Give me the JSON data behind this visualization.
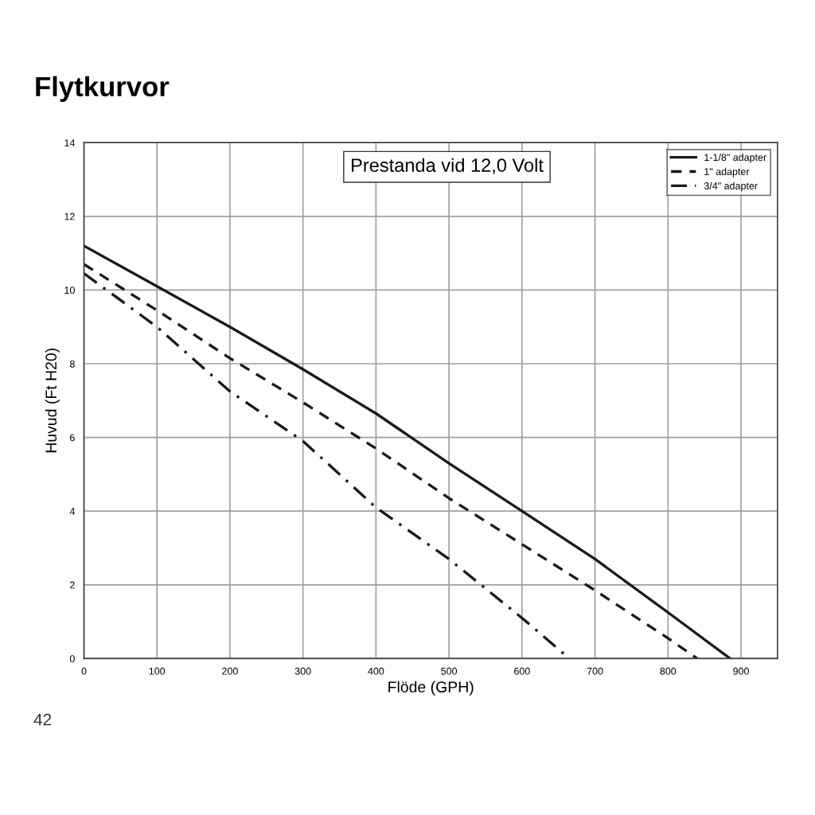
{
  "chart_data": {
    "type": "line",
    "title": "Flytkurvor",
    "xlabel": "Flöde (GPH)",
    "ylabel": "Huvud (Ft H20)",
    "annotations": [
      "Prestanda vid 12,0 Volt",
      "42"
    ],
    "xlim": [
      0,
      950
    ],
    "xticks": [
      0,
      100,
      200,
      300,
      400,
      500,
      600,
      700,
      800,
      900
    ],
    "ylim": [
      0,
      14
    ],
    "yticks": [
      0,
      2,
      4,
      6,
      8,
      10,
      12,
      14
    ],
    "grid": true,
    "legend": "top right",
    "marker": "none",
    "series": [
      {
        "name": "1-1/8\" adapter",
        "color": "#1a1a1a",
        "line_style": "solid",
        "x": [
          0,
          100,
          200,
          300,
          400,
          500,
          600,
          700,
          800,
          885
        ],
        "values": [
          11.2,
          10.1,
          9.0,
          7.85,
          6.65,
          5.3,
          4.0,
          2.7,
          1.25,
          0
        ]
      },
      {
        "name": "1\" adapter",
        "color": "#1a1a1a",
        "line_style": "dashed",
        "x": [
          0,
          100,
          200,
          300,
          400,
          500,
          600,
          700,
          800,
          840
        ],
        "values": [
          10.7,
          9.45,
          8.15,
          6.95,
          5.7,
          4.35,
          3.1,
          1.85,
          0.55,
          0
        ]
      },
      {
        "name": "3/4\" adapter",
        "color": "#1a1a1a",
        "line_style": "dashdot",
        "x": [
          0,
          100,
          200,
          300,
          400,
          500,
          600,
          665
        ],
        "values": [
          10.45,
          9.0,
          7.25,
          5.9,
          4.1,
          2.7,
          1.1,
          0
        ]
      }
    ]
  }
}
